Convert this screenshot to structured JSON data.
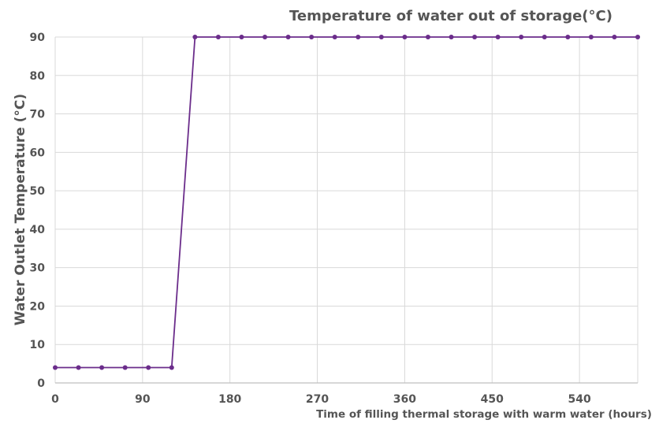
{
  "chart_data": {
    "type": "line",
    "title": "Temperature of water out of storage(°C)",
    "xlabel": "Time of filling thermal storage with warm water (hours)",
    "ylabel": "Water Outlet Temperature (°C)",
    "xlim": [
      0,
      600
    ],
    "ylim": [
      0,
      90
    ],
    "x_ticks": [
      0,
      90,
      180,
      270,
      360,
      450,
      540
    ],
    "y_ticks": [
      0,
      10,
      20,
      30,
      40,
      50,
      60,
      70,
      80,
      90
    ],
    "grid": true,
    "legend": "none",
    "series": [
      {
        "color": "#6b2d8b",
        "x": [
          0,
          24,
          48,
          72,
          96,
          120,
          144,
          168,
          192,
          216,
          240,
          264,
          288,
          312,
          336,
          360,
          384,
          408,
          432,
          456,
          480,
          504,
          528,
          552,
          576,
          600
        ],
        "y": [
          4,
          4,
          4,
          4,
          4,
          4,
          90,
          90,
          90,
          90,
          90,
          90,
          90,
          90,
          90,
          90,
          90,
          90,
          90,
          90,
          90,
          90,
          90,
          90,
          90,
          90
        ]
      }
    ]
  }
}
